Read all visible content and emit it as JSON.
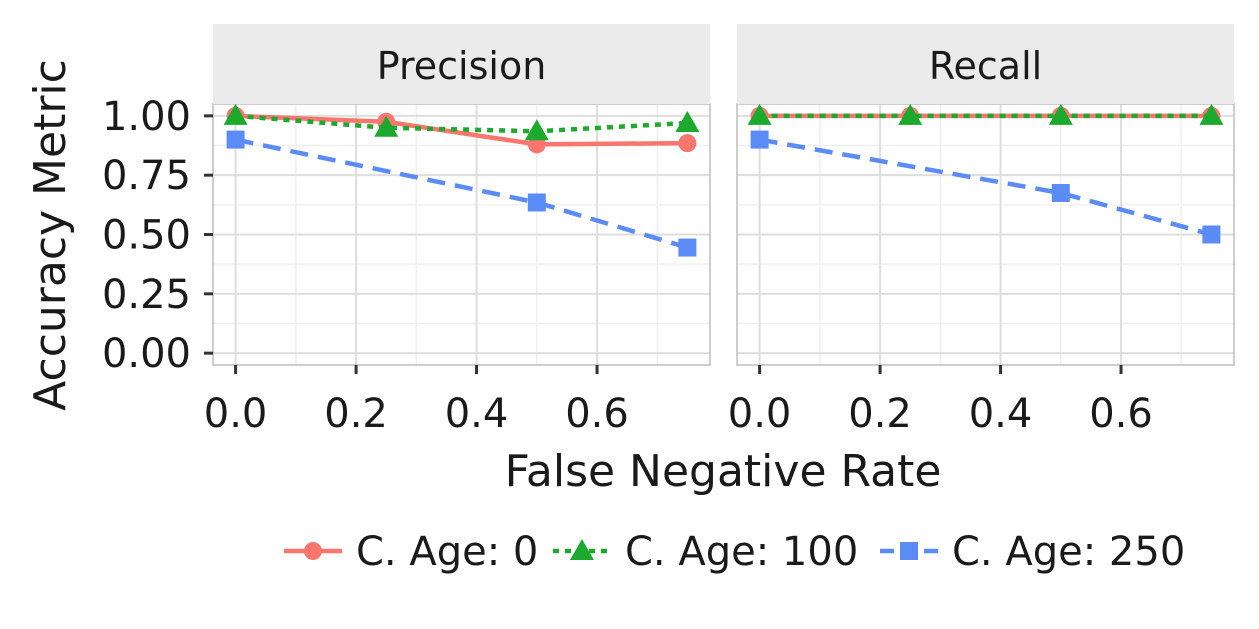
{
  "chart_data": {
    "type": "line",
    "xlabel": "False Negative Rate",
    "ylabel": "Accuracy Metric",
    "xlim": [
      -0.0375,
      0.7875
    ],
    "ylim": [
      -0.05,
      1.05
    ],
    "x_ticks": [
      0.0,
      0.2,
      0.4,
      0.6
    ],
    "x_tick_labels": [
      "0.0",
      "0.2",
      "0.4",
      "0.6"
    ],
    "y_ticks": [
      0.0,
      0.25,
      0.5,
      0.75,
      1.0
    ],
    "y_tick_labels": [
      "0.00",
      "0.25",
      "0.50",
      "0.75",
      "1.00"
    ],
    "grid": true,
    "legend_position": "bottom",
    "colors": {
      "panel_bg": "#ffffff",
      "strip_bg": "#ebebeb",
      "grid": "#dedede",
      "border": "#bdbdbd"
    },
    "series_styles": [
      {
        "name": "C. Age: 0",
        "color": "#F8766D",
        "marker": "circle",
        "dash": "solid"
      },
      {
        "name": "C. Age: 100",
        "color": "#1BAA2D",
        "marker": "triangle",
        "dash": "dotted"
      },
      {
        "name": "C. Age: 250",
        "color": "#5B8CF5",
        "marker": "square",
        "dash": "dashed"
      }
    ],
    "facets": [
      {
        "title": "Precision",
        "series": [
          {
            "name": "C. Age: 0",
            "x": [
              0.0,
              0.25,
              0.5,
              0.75
            ],
            "y": [
              1.0,
              0.975,
              0.88,
              0.885
            ]
          },
          {
            "name": "C. Age: 100",
            "x": [
              0.0,
              0.25,
              0.5,
              0.75
            ],
            "y": [
              1.0,
              0.95,
              0.935,
              0.97
            ]
          },
          {
            "name": "C. Age: 250",
            "x": [
              0.0,
              0.5,
              0.75
            ],
            "y": [
              0.9,
              0.635,
              0.445
            ]
          }
        ]
      },
      {
        "title": "Recall",
        "series": [
          {
            "name": "C. Age: 0",
            "x": [
              0.0,
              0.25,
              0.5,
              0.75
            ],
            "y": [
              1.0,
              1.0,
              1.0,
              1.0
            ]
          },
          {
            "name": "C. Age: 100",
            "x": [
              0.0,
              0.25,
              0.5,
              0.75
            ],
            "y": [
              1.0,
              1.0,
              1.0,
              1.0
            ]
          },
          {
            "name": "C. Age: 250",
            "x": [
              0.0,
              0.5,
              0.75
            ],
            "y": [
              0.9,
              0.675,
              0.5
            ]
          }
        ]
      }
    ]
  }
}
